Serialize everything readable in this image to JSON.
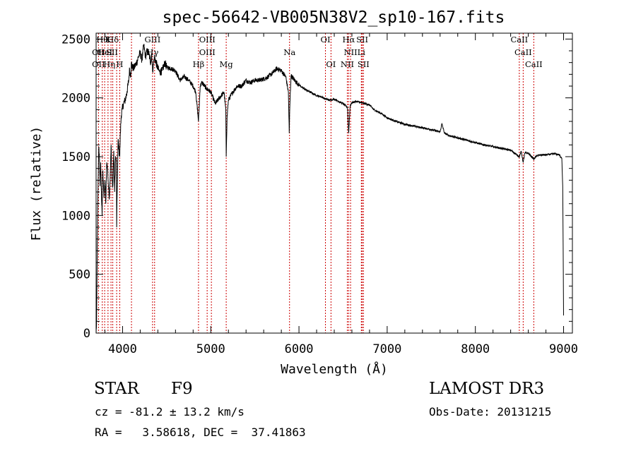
{
  "chart_data": {
    "type": "line",
    "title": "spec-56642-VB005N38V2_sp10-167.fits",
    "xlabel": "Wavelength (Å)",
    "ylabel": "Flux (relative)",
    "xlim": [
      3700,
      9100
    ],
    "ylim": [
      0,
      2550
    ],
    "x_ticks": [
      "4000",
      "5000",
      "6000",
      "7000",
      "8000",
      "9000"
    ],
    "y_ticks": [
      "0",
      "500",
      "1000",
      "1500",
      "2000",
      "2500"
    ],
    "series": [
      {
        "name": "flux",
        "x": [
          3700,
          3705,
          3712,
          3718,
          3725,
          3730,
          3738,
          3745,
          3752,
          3760,
          3768,
          3775,
          3782,
          3790,
          3800,
          3810,
          3820,
          3830,
          3840,
          3850,
          3860,
          3870,
          3880,
          3890,
          3900,
          3910,
          3920,
          3930,
          3933,
          3940,
          3950,
          3960,
          3968,
          3975,
          3985,
          3995,
          4010,
          4030,
          4050,
          4070,
          4080,
          4090,
          4101,
          4110,
          4125,
          4140,
          4160,
          4180,
          4200,
          4220,
          4240,
          4260,
          4280,
          4300,
          4320,
          4330,
          4340,
          4350,
          4360,
          4380,
          4400,
          4420,
          4450,
          4480,
          4500,
          4550,
          4600,
          4650,
          4700,
          4750,
          4800,
          4830,
          4861,
          4880,
          4900,
          4950,
          5000,
          5050,
          5100,
          5150,
          5170,
          5175,
          5185,
          5200,
          5250,
          5300,
          5350,
          5400,
          5450,
          5500,
          5550,
          5600,
          5650,
          5700,
          5750,
          5800,
          5850,
          5880,
          5890,
          5896,
          5910,
          5950,
          6000,
          6050,
          6100,
          6150,
          6200,
          6250,
          6300,
          6350,
          6400,
          6450,
          6500,
          6550,
          6563,
          6580,
          6600,
          6650,
          6700,
          6750,
          6800,
          6850,
          6900,
          6950,
          7000,
          7100,
          7200,
          7300,
          7400,
          7500,
          7600,
          7620,
          7650,
          7700,
          7800,
          7900,
          8000,
          8100,
          8200,
          8300,
          8400,
          8498,
          8520,
          8542,
          8560,
          8600,
          8662,
          8700,
          8750,
          8800,
          8850,
          8900,
          8950,
          8980,
          8990,
          8995,
          9000
        ],
        "y": [
          0,
          80,
          600,
          1050,
          1350,
          1580,
          1500,
          1250,
          1450,
          1200,
          1000,
          1380,
          1300,
          1150,
          1300,
          1100,
          1450,
          1400,
          1250,
          1150,
          1350,
          1600,
          1300,
          1250,
          1550,
          1200,
          1500,
          1450,
          900,
          1250,
          1650,
          1550,
          1500,
          1700,
          1850,
          1900,
          1950,
          1980,
          2050,
          2150,
          2250,
          2180,
          2300,
          2260,
          2250,
          2270,
          2300,
          2350,
          2380,
          2320,
          2450,
          2350,
          2400,
          2370,
          2300,
          2380,
          2230,
          2280,
          2350,
          2300,
          2250,
          2220,
          2230,
          2300,
          2260,
          2250,
          2230,
          2150,
          2180,
          2150,
          2100,
          2050,
          1800,
          2100,
          2130,
          2080,
          2050,
          1950,
          2000,
          2050,
          1900,
          1500,
          1850,
          1980,
          2050,
          2100,
          2100,
          2150,
          2130,
          2150,
          2150,
          2160,
          2180,
          2210,
          2250,
          2230,
          2180,
          2050,
          1700,
          1920,
          2190,
          2150,
          2110,
          2080,
          2060,
          2040,
          2020,
          2010,
          1990,
          1980,
          1990,
          1970,
          1950,
          1920,
          1700,
          1930,
          1960,
          1970,
          1960,
          1950,
          1940,
          1900,
          1880,
          1860,
          1830,
          1800,
          1775,
          1760,
          1745,
          1730,
          1710,
          1780,
          1700,
          1680,
          1660,
          1640,
          1620,
          1600,
          1585,
          1570,
          1555,
          1500,
          1545,
          1450,
          1530,
          1530,
          1480,
          1510,
          1515,
          1515,
          1520,
          1525,
          1515,
          1490,
          1250,
          750,
          150
        ]
      }
    ],
    "line_labels": [
      {
        "wl": 3770,
        "text": "Hθ",
        "row": 0
      },
      {
        "wl": 3835,
        "text": "K",
        "row": 0
      },
      {
        "wl": 3890,
        "text": "Hδ",
        "row": 0
      },
      {
        "wl": 4340,
        "text": "GIII",
        "row": 0
      },
      {
        "wl": 4960,
        "text": "OIII",
        "row": 0
      },
      {
        "wl": 6300,
        "text": "OI",
        "row": 0
      },
      {
        "wl": 6563,
        "text": "Hα",
        "row": 0
      },
      {
        "wl": 6717,
        "text": "SII",
        "row": 0
      },
      {
        "wl": 8498,
        "text": "CaII",
        "row": 0
      },
      {
        "wl": 3727,
        "text": "OII",
        "row": 1
      },
      {
        "wl": 3800,
        "text": "HeI",
        "row": 1
      },
      {
        "wl": 3880,
        "text": "SII",
        "row": 1
      },
      {
        "wl": 4340,
        "text": "Hγ",
        "row": 1
      },
      {
        "wl": 4960,
        "text": "OIII",
        "row": 1
      },
      {
        "wl": 5893,
        "text": "Na",
        "row": 1
      },
      {
        "wl": 6585,
        "text": "NII",
        "row": 1
      },
      {
        "wl": 6707,
        "text": "Li",
        "row": 1
      },
      {
        "wl": 8542,
        "text": "CaII",
        "row": 1
      },
      {
        "wl": 3727,
        "text": "OII",
        "row": 2
      },
      {
        "wl": 3850,
        "text": "Hη",
        "row": 2
      },
      {
        "wl": 3968,
        "text": "H",
        "row": 2
      },
      {
        "wl": 4861,
        "text": "Hβ",
        "row": 2
      },
      {
        "wl": 5175,
        "text": "Mg",
        "row": 2
      },
      {
        "wl": 6363,
        "text": "OI",
        "row": 2
      },
      {
        "wl": 6548,
        "text": "NII",
        "row": 2
      },
      {
        "wl": 6731,
        "text": "SII",
        "row": 2
      },
      {
        "wl": 8662,
        "text": "CaII",
        "row": 2
      }
    ],
    "marker_lines": [
      3727,
      3770,
      3797,
      3835,
      3869,
      3889,
      3933,
      3968,
      4101,
      4340,
      4363,
      4861,
      4959,
      5007,
      5175,
      5893,
      6300,
      6363,
      6548,
      6563,
      6585,
      6707,
      6717,
      6731,
      8498,
      8542,
      8662
    ]
  },
  "info": {
    "object_class": "STAR",
    "subclass": "F9",
    "survey": "LAMOST DR3",
    "redshift": "cz = -81.2 ± 13.2 km/s",
    "obs_date": "Obs-Date: 20131215",
    "coords": "RA =   3.58618, DEC =  37.41863"
  },
  "colors": {
    "marker": "#cc0000",
    "axis": "#000000",
    "spectrum": "#000000"
  }
}
